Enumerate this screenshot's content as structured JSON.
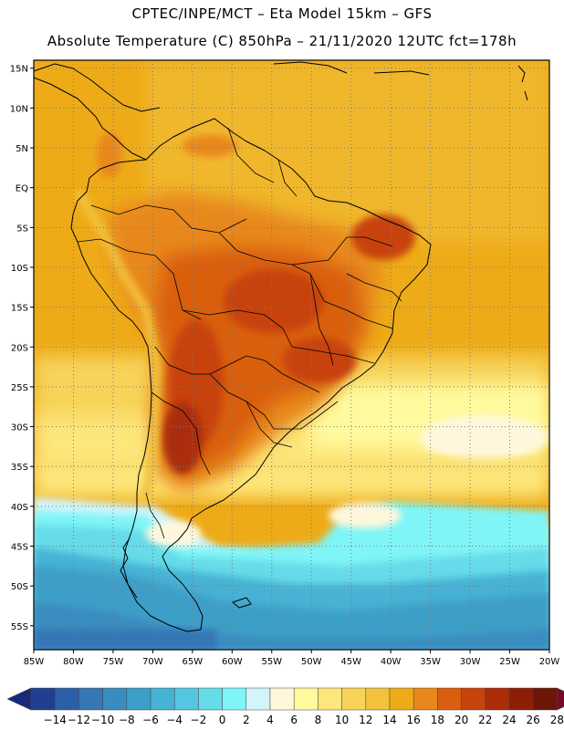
{
  "header": {
    "line1": "CPTEC/INPE/MCT –  Eta Model 15km – GFS",
    "line2": "Absolute Temperature (C) 850hPa – 21/11/2020 12UTC fct=178h"
  },
  "axes": {
    "lat_labels": [
      "15N",
      "10N",
      "5N",
      "EQ",
      "5S",
      "10S",
      "15S",
      "20S",
      "25S",
      "30S",
      "35S",
      "40S",
      "45S",
      "50S",
      "55S"
    ],
    "lon_labels": [
      "85W",
      "80W",
      "75W",
      "70W",
      "65W",
      "60W",
      "55W",
      "50W",
      "45W",
      "40W",
      "35W",
      "30W",
      "25W",
      "20W"
    ]
  },
  "colorbar": {
    "labels": [
      "−14",
      "−12",
      "−10",
      "−8",
      "−6",
      "−4",
      "−2",
      "0",
      "2",
      "4",
      "6",
      "8",
      "10",
      "12",
      "14",
      "16",
      "18",
      "20",
      "22",
      "24",
      "26",
      "28"
    ],
    "colors": [
      "#1f3f8f",
      "#2d5ea8",
      "#3576b5",
      "#3a8cc0",
      "#3d9fc8",
      "#46b2d4",
      "#55c6df",
      "#66dbe9",
      "#7ff5f7",
      "#d2f5fc",
      "#fff7dc",
      "#fffa9e",
      "#fde67a",
      "#f7d35a",
      "#f2c13e",
      "#eeab18",
      "#e8881a",
      "#d95e0f",
      "#c8420c",
      "#aa2d08",
      "#8e1d06",
      "#6b1607"
    ],
    "low_arrow": "#1a2a7a",
    "high_arrow": "#7a0a2a"
  },
  "chart_data": {
    "type": "heatmap",
    "title": "Absolute Temperature (C) 850hPa",
    "xlim": [
      -85,
      -20
    ],
    "ylim": [
      -58,
      16
    ],
    "units": "C"
  }
}
